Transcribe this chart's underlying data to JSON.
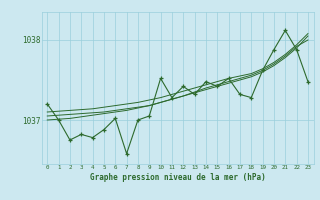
{
  "title": "Graphe pression niveau de la mer (hPa)",
  "bg_color": "#cce8f0",
  "grid_color": "#9acfdc",
  "line_color": "#2d6a2d",
  "xlim": [
    -0.5,
    23.5
  ],
  "ylim": [
    1036.45,
    1038.35
  ],
  "yticks": [
    1037,
    1038
  ],
  "xticks": [
    0,
    1,
    2,
    3,
    4,
    5,
    6,
    7,
    8,
    9,
    10,
    11,
    12,
    13,
    14,
    15,
    16,
    17,
    18,
    19,
    20,
    21,
    22,
    23
  ],
  "hours": [
    0,
    1,
    2,
    3,
    4,
    5,
    6,
    7,
    8,
    9,
    10,
    11,
    12,
    13,
    14,
    15,
    16,
    17,
    18,
    19,
    20,
    21,
    22,
    23
  ],
  "pressure_jagged": [
    1037.2,
    1037.0,
    1036.75,
    1036.82,
    1036.78,
    1036.88,
    1037.02,
    1036.58,
    1037.0,
    1037.05,
    1037.52,
    1037.28,
    1037.42,
    1037.32,
    1037.48,
    1037.42,
    1037.52,
    1037.32,
    1037.28,
    1037.62,
    1037.88,
    1038.12,
    1037.88,
    1037.48
  ],
  "trend1": [
    1037.05,
    1037.06,
    1037.07,
    1037.08,
    1037.09,
    1037.1,
    1037.12,
    1037.14,
    1037.16,
    1037.18,
    1037.22,
    1037.26,
    1037.3,
    1037.34,
    1037.38,
    1037.42,
    1037.46,
    1037.5,
    1037.54,
    1037.6,
    1037.68,
    1037.78,
    1037.9,
    1038.05
  ],
  "trend2": [
    1037.0,
    1037.01,
    1037.02,
    1037.04,
    1037.06,
    1037.08,
    1037.1,
    1037.12,
    1037.15,
    1037.18,
    1037.22,
    1037.26,
    1037.3,
    1037.35,
    1037.4,
    1037.44,
    1037.48,
    1037.52,
    1037.56,
    1037.62,
    1037.7,
    1037.8,
    1037.92,
    1038.0
  ],
  "trend3": [
    1037.1,
    1037.11,
    1037.12,
    1037.13,
    1037.14,
    1037.16,
    1037.18,
    1037.2,
    1037.22,
    1037.25,
    1037.28,
    1037.32,
    1037.36,
    1037.4,
    1037.44,
    1037.48,
    1037.52,
    1037.55,
    1037.58,
    1037.64,
    1037.72,
    1037.82,
    1037.94,
    1038.08
  ]
}
